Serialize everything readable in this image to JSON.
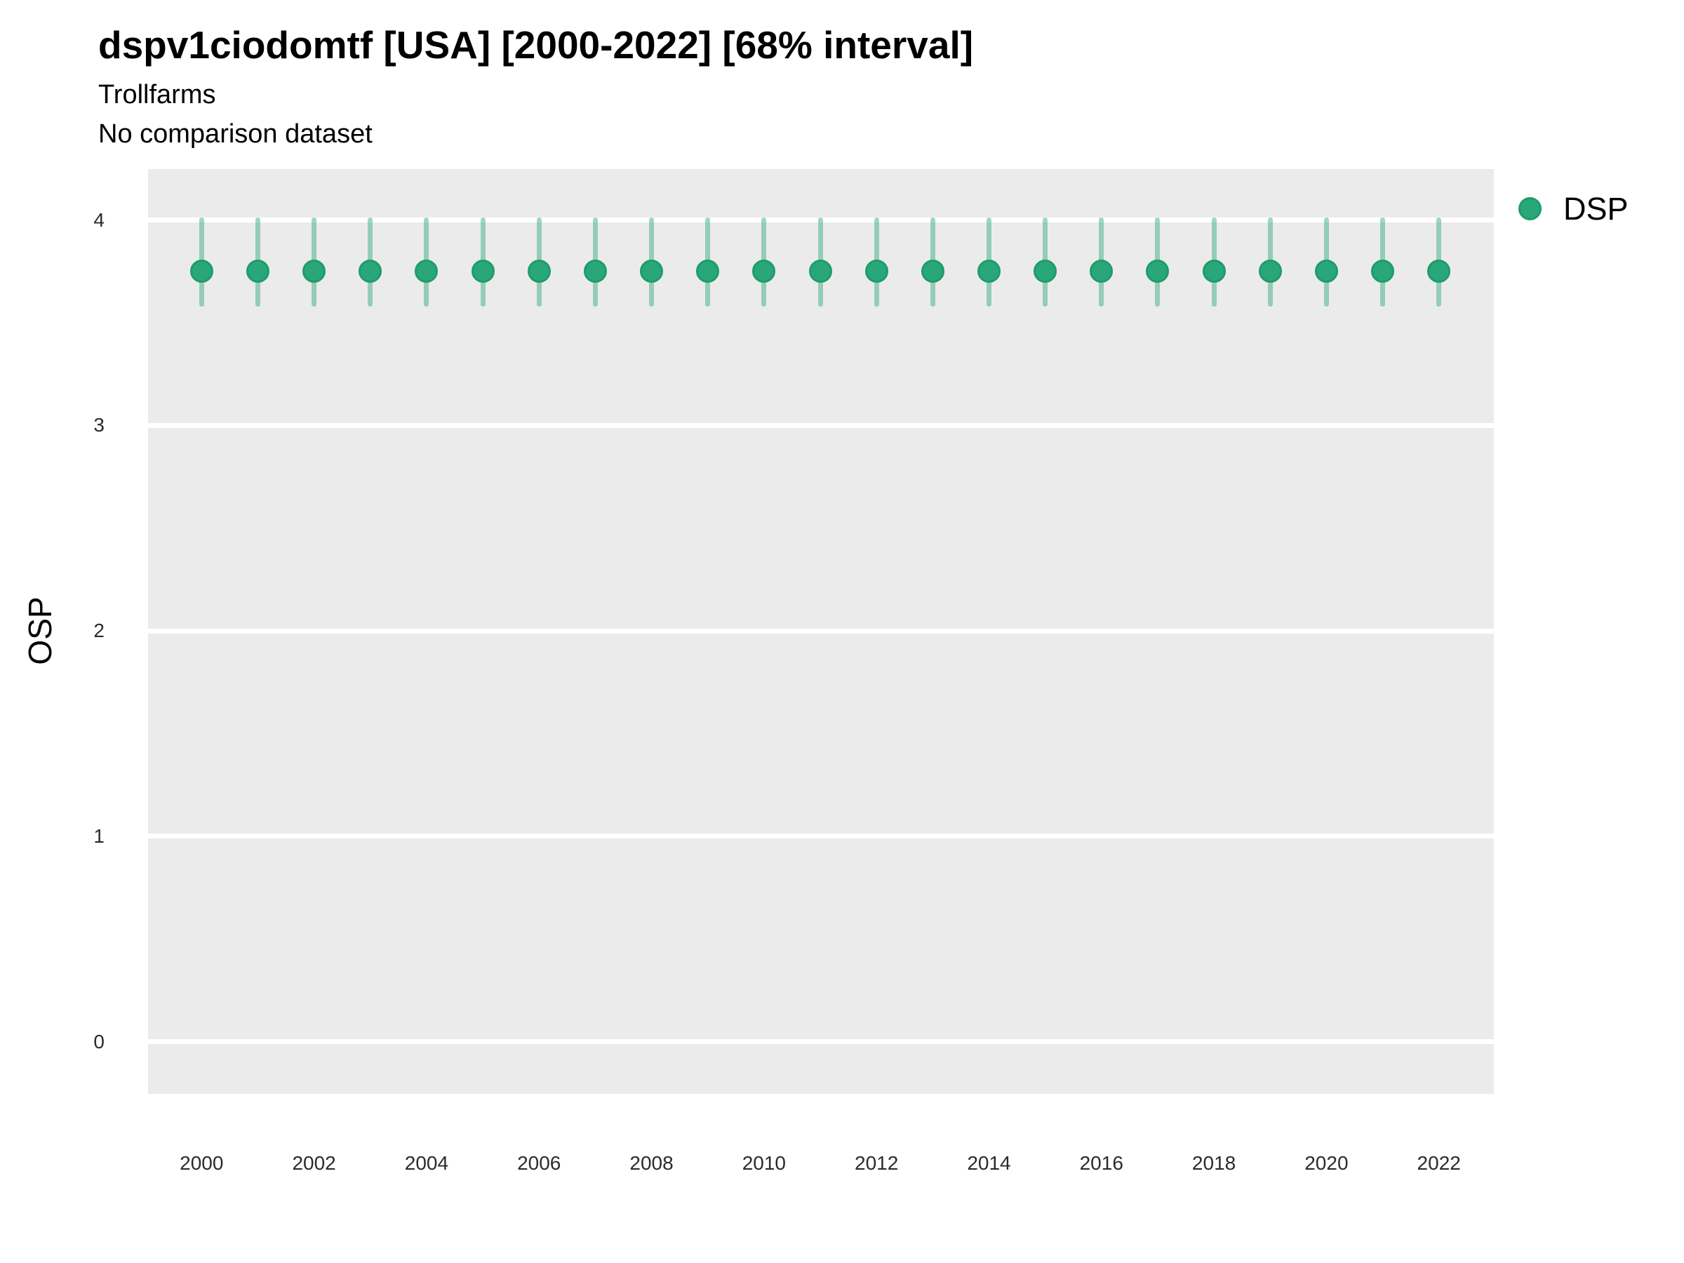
{
  "title": "dspv1ciodomtf [USA] [2000-2022] [68% interval]",
  "subtitle": "Trollfarms",
  "subtitle2": "No comparison dataset",
  "axes": {
    "y_label": "OSP",
    "y_ticks": [
      0,
      1,
      2,
      3,
      4
    ],
    "x_ticks": [
      2000,
      2002,
      2004,
      2006,
      2008,
      2010,
      2012,
      2014,
      2016,
      2018,
      2020,
      2022
    ]
  },
  "legend": {
    "position": "right",
    "items": [
      {
        "label": "DSP",
        "color": "#2aa77a",
        "ring_color": "#1d9c6c"
      }
    ]
  },
  "colors": {
    "panel_background": "#ebebeb",
    "gridline": "#ffffff",
    "point_fill": "#2aa77a",
    "point_ring": "#1d9c6c",
    "interval_bar": "rgba(42,167,122,0.45)",
    "text": "#000000",
    "tick_text": "#2b2b2b"
  },
  "chart_data": {
    "type": "scatter",
    "title": "dspv1ciodomtf [USA] [2000-2022] [68% interval]",
    "subtitle": "Trollfarms",
    "note": "No comparison dataset",
    "xlabel": "",
    "ylabel": "OSP",
    "interval": "68%",
    "grid": "horizontal-major-only",
    "legend_position": "right",
    "xlim": [
      1999,
      2023
    ],
    "ylim": [
      -0.26,
      4.27
    ],
    "y_ticks": [
      0,
      1,
      2,
      3,
      4
    ],
    "x_ticks": [
      2000,
      2002,
      2004,
      2006,
      2008,
      2010,
      2012,
      2014,
      2016,
      2018,
      2020,
      2022
    ],
    "series": [
      {
        "name": "DSP",
        "color": "#2aa77a",
        "points": [
          {
            "x": 2000,
            "y": 3.75,
            "lo": 3.59,
            "hi": 4.0
          },
          {
            "x": 2001,
            "y": 3.75,
            "lo": 3.59,
            "hi": 4.0
          },
          {
            "x": 2002,
            "y": 3.75,
            "lo": 3.59,
            "hi": 4.0
          },
          {
            "x": 2003,
            "y": 3.75,
            "lo": 3.59,
            "hi": 4.0
          },
          {
            "x": 2004,
            "y": 3.75,
            "lo": 3.59,
            "hi": 4.0
          },
          {
            "x": 2005,
            "y": 3.75,
            "lo": 3.59,
            "hi": 4.0
          },
          {
            "x": 2006,
            "y": 3.75,
            "lo": 3.59,
            "hi": 4.0
          },
          {
            "x": 2007,
            "y": 3.75,
            "lo": 3.59,
            "hi": 4.0
          },
          {
            "x": 2008,
            "y": 3.75,
            "lo": 3.59,
            "hi": 4.0
          },
          {
            "x": 2009,
            "y": 3.75,
            "lo": 3.59,
            "hi": 4.0
          },
          {
            "x": 2010,
            "y": 3.75,
            "lo": 3.59,
            "hi": 4.0
          },
          {
            "x": 2011,
            "y": 3.75,
            "lo": 3.59,
            "hi": 4.0
          },
          {
            "x": 2012,
            "y": 3.75,
            "lo": 3.59,
            "hi": 4.0
          },
          {
            "x": 2013,
            "y": 3.75,
            "lo": 3.59,
            "hi": 4.0
          },
          {
            "x": 2014,
            "y": 3.75,
            "lo": 3.59,
            "hi": 4.0
          },
          {
            "x": 2015,
            "y": 3.75,
            "lo": 3.59,
            "hi": 4.0
          },
          {
            "x": 2016,
            "y": 3.75,
            "lo": 3.59,
            "hi": 4.0
          },
          {
            "x": 2017,
            "y": 3.75,
            "lo": 3.59,
            "hi": 4.0
          },
          {
            "x": 2018,
            "y": 3.75,
            "lo": 3.59,
            "hi": 4.0
          },
          {
            "x": 2019,
            "y": 3.75,
            "lo": 3.59,
            "hi": 4.0
          },
          {
            "x": 2020,
            "y": 3.75,
            "lo": 3.59,
            "hi": 4.0
          },
          {
            "x": 2021,
            "y": 3.75,
            "lo": 3.59,
            "hi": 4.0
          },
          {
            "x": 2022,
            "y": 3.75,
            "lo": 3.59,
            "hi": 4.0
          }
        ]
      }
    ]
  }
}
